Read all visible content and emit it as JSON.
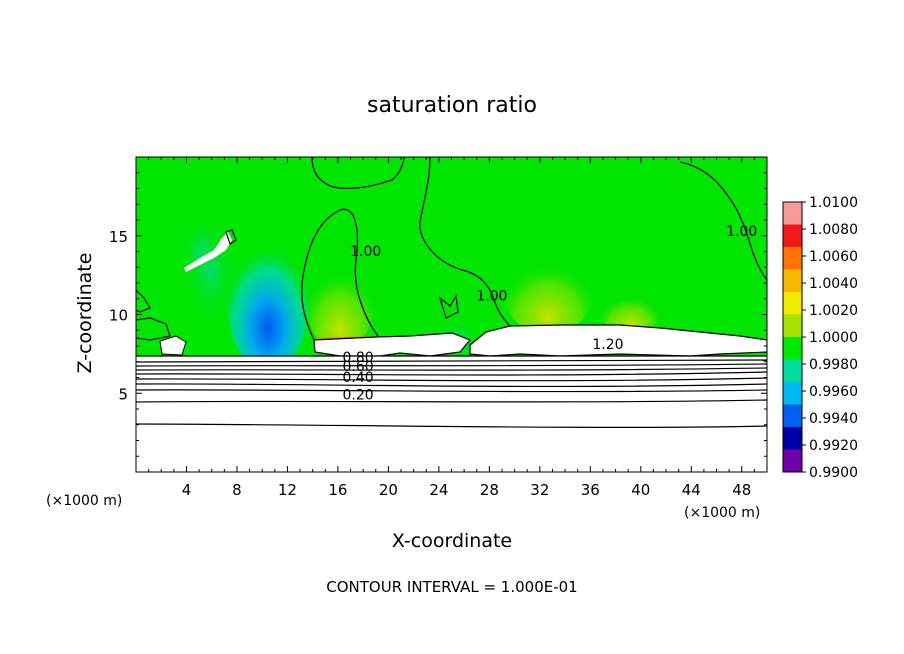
{
  "chart_data": {
    "type": "heatmap",
    "title": "saturation ratio",
    "xlabel": "X-coordinate",
    "ylabel": "Z-coordinate",
    "x_unit_left": "(×1000 m)",
    "x_unit_right": "(×1000 m)",
    "xlim": [
      0,
      50
    ],
    "ylim": [
      0,
      20
    ],
    "x_ticks": [
      "4",
      "8",
      "12",
      "16",
      "20",
      "24",
      "28",
      "32",
      "36",
      "40",
      "44",
      "48"
    ],
    "x_tick_values": [
      4,
      8,
      12,
      16,
      20,
      24,
      28,
      32,
      36,
      40,
      44,
      48
    ],
    "y_ticks": [
      "5",
      "10",
      "15"
    ],
    "y_tick_values": [
      5,
      10,
      15
    ],
    "footer": "CONTOUR INTERVAL = 1.000E-01",
    "colorbar": {
      "labels": [
        "1.0100",
        "1.0080",
        "1.0060",
        "1.0040",
        "1.0020",
        "1.0000",
        "0.9980",
        "0.9960",
        "0.9940",
        "0.9920",
        "0.9900"
      ],
      "values": [
        1.01,
        1.008,
        1.006,
        1.004,
        1.002,
        1.0,
        0.998,
        0.996,
        0.994,
        0.992,
        0.99
      ],
      "colors": [
        "#f49a9a",
        "#f01818",
        "#ff7400",
        "#f6b800",
        "#f0ec00",
        "#a6e400",
        "#00ea00",
        "#00dc9c",
        "#00b8ee",
        "#0060f0",
        "#0000a8",
        "#7000a8"
      ]
    },
    "contour_labels": [
      {
        "text": "1.00",
        "x": 18.2,
        "y": 13.7
      },
      {
        "text": "1.00",
        "x": 28.2,
        "y": 10.9
      },
      {
        "text": "1.00",
        "x": 48.0,
        "y": 15.0
      },
      {
        "text": "1.20",
        "x": 37.4,
        "y": 7.8
      },
      {
        "text": "0.80",
        "x": 17.6,
        "y": 7.0
      },
      {
        "text": "0.60",
        "x": 17.6,
        "y": 6.4
      },
      {
        "text": "0.40",
        "x": 17.6,
        "y": 5.7
      },
      {
        "text": "0.20",
        "x": 17.6,
        "y": 4.6
      }
    ],
    "contour_levels_lower": [
      0.2,
      0.4,
      0.6,
      0.8,
      1.0,
      1.2
    ],
    "grid": false,
    "legend": "colorbar-right"
  }
}
